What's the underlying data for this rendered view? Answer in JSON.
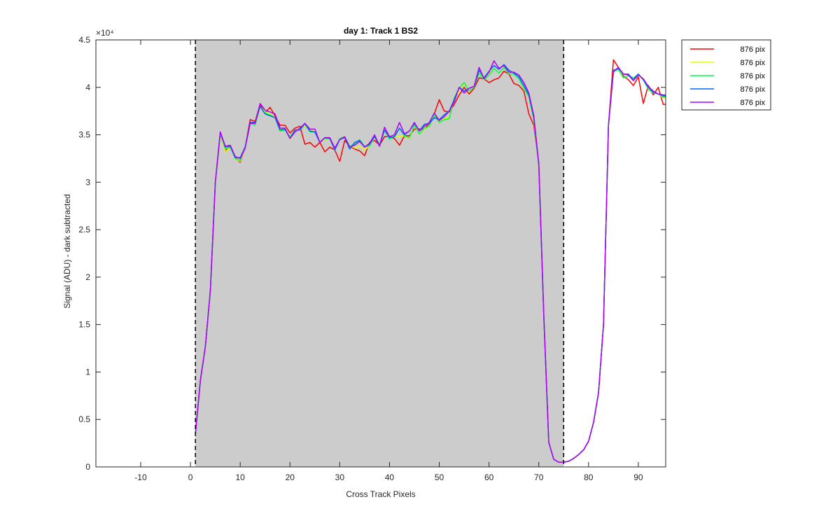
{
  "chart_data": {
    "type": "line",
    "title": "day 1: Track 1  BS2",
    "xlabel": "Cross Track Pixels",
    "ylabel": "Signal (ADU) - dark subtracted",
    "y_exponent_label": "×10⁴",
    "xlim": [
      -19,
      95.5
    ],
    "ylim": [
      0,
      4.5
    ],
    "xticks": [
      -10,
      0,
      10,
      20,
      30,
      40,
      50,
      60,
      70,
      80,
      90
    ],
    "yticks": [
      0,
      0.5,
      1,
      1.5,
      2,
      2.5,
      3,
      3.5,
      4,
      4.5
    ],
    "xtick_labels": [
      "-10",
      "0",
      "10",
      "20",
      "30",
      "40",
      "50",
      "60",
      "70",
      "80",
      "90"
    ],
    "ytick_labels": [
      "0",
      "0.5",
      "1",
      "1.5",
      "2",
      "2.5",
      "3",
      "3.5",
      "4",
      "4.5"
    ],
    "shaded_region": {
      "x0": 1,
      "x1": 75,
      "color": "#cccccc"
    },
    "vlines": [
      1,
      75
    ],
    "legend_position": "outside-top-right",
    "x": [
      1,
      2,
      3,
      4,
      5,
      6,
      7,
      8,
      9,
      10,
      11,
      12,
      13,
      14,
      15,
      16,
      17,
      18,
      19,
      20,
      21,
      22,
      23,
      24,
      25,
      26,
      27,
      28,
      29,
      30,
      31,
      32,
      33,
      34,
      35,
      36,
      37,
      38,
      39,
      40,
      41,
      42,
      43,
      44,
      45,
      46,
      47,
      48,
      49,
      50,
      51,
      52,
      53,
      54,
      55,
      56,
      57,
      58,
      59,
      60,
      61,
      62,
      63,
      64,
      65,
      66,
      67,
      68,
      69,
      70,
      71,
      72,
      73,
      74,
      75,
      76,
      77,
      78,
      79,
      80,
      81,
      82,
      83,
      84,
      85,
      86,
      87,
      88,
      89,
      90,
      91,
      92,
      93,
      94,
      95,
      96
    ],
    "series": [
      {
        "name": "876 pix",
        "color": "#ff0000",
        "values": [
          0.35,
          0.92,
          1.27,
          1.85,
          3.0,
          3.51,
          3.33,
          3.38,
          3.26,
          3.21,
          3.37,
          3.66,
          3.64,
          3.82,
          3.73,
          3.79,
          3.7,
          3.6,
          3.6,
          3.52,
          3.57,
          3.59,
          3.4,
          3.42,
          3.37,
          3.42,
          3.32,
          3.37,
          3.34,
          3.22,
          3.44,
          3.38,
          3.35,
          3.33,
          3.28,
          3.42,
          3.44,
          3.39,
          3.48,
          3.48,
          3.46,
          3.39,
          3.49,
          3.49,
          3.56,
          3.56,
          3.56,
          3.62,
          3.72,
          3.87,
          3.75,
          3.74,
          3.82,
          3.92,
          4.0,
          3.93,
          3.99,
          4.1,
          4.09,
          4.05,
          4.08,
          4.1,
          4.17,
          4.14,
          4.04,
          4.02,
          3.96,
          3.72,
          3.6,
          3.2,
          1.6,
          0.26,
          0.08,
          0.05,
          0.05,
          0.06,
          0.09,
          0.13,
          0.18,
          0.27,
          0.47,
          0.78,
          1.5,
          3.6,
          4.29,
          4.21,
          4.12,
          4.08,
          4.02,
          4.11,
          3.83,
          4.02,
          3.92,
          4.0,
          3.82,
          3.82
        ]
      },
      {
        "name": "876 pix",
        "color": "#e0ff00",
        "values": [
          0.35,
          0.91,
          1.27,
          1.85,
          3.0,
          3.52,
          3.32,
          3.37,
          3.25,
          3.22,
          3.37,
          3.62,
          3.61,
          3.8,
          3.74,
          3.72,
          3.67,
          3.56,
          3.57,
          3.45,
          3.55,
          3.55,
          3.6,
          3.54,
          3.54,
          3.42,
          3.45,
          3.45,
          3.34,
          3.45,
          3.47,
          3.39,
          3.36,
          3.38,
          3.34,
          3.38,
          3.47,
          3.39,
          3.54,
          3.46,
          3.49,
          3.48,
          3.49,
          3.46,
          3.6,
          3.51,
          3.56,
          3.59,
          3.72,
          3.64,
          3.67,
          3.68,
          3.89,
          3.95,
          4.05,
          3.95,
          4.01,
          4.18,
          4.08,
          4.14,
          4.2,
          4.15,
          4.21,
          4.14,
          4.14,
          4.09,
          3.99,
          3.9,
          3.65,
          3.18,
          1.6,
          0.26,
          0.08,
          0.05,
          0.05,
          0.06,
          0.09,
          0.13,
          0.18,
          0.27,
          0.47,
          0.78,
          1.5,
          3.6,
          4.16,
          4.21,
          4.1,
          4.12,
          4.08,
          4.13,
          4.08,
          3.98,
          3.95,
          3.93,
          3.89,
          3.89
        ]
      },
      {
        "name": "876 pix",
        "color": "#00ff40",
        "values": [
          0.35,
          0.91,
          1.27,
          1.86,
          3.0,
          3.52,
          3.35,
          3.37,
          3.25,
          3.23,
          3.38,
          3.62,
          3.6,
          3.8,
          3.73,
          3.71,
          3.68,
          3.54,
          3.55,
          3.48,
          3.55,
          3.55,
          3.61,
          3.53,
          3.53,
          3.42,
          3.46,
          3.46,
          3.35,
          3.46,
          3.48,
          3.38,
          3.4,
          3.45,
          3.38,
          3.38,
          3.48,
          3.4,
          3.55,
          3.45,
          3.49,
          3.57,
          3.49,
          3.47,
          3.6,
          3.51,
          3.57,
          3.59,
          3.71,
          3.63,
          3.66,
          3.67,
          3.89,
          3.99,
          4.05,
          3.96,
          4.0,
          4.15,
          4.08,
          4.13,
          4.2,
          4.15,
          4.21,
          4.14,
          4.14,
          4.09,
          3.99,
          3.9,
          3.66,
          3.18,
          1.6,
          0.26,
          0.08,
          0.05,
          0.05,
          0.06,
          0.09,
          0.13,
          0.18,
          0.27,
          0.47,
          0.78,
          1.5,
          3.6,
          4.16,
          4.19,
          4.1,
          4.12,
          4.1,
          4.14,
          4.08,
          3.98,
          3.94,
          3.93,
          3.9,
          3.9
        ]
      },
      {
        "name": "876 pix",
        "color": "#0066ff",
        "values": [
          0.35,
          0.91,
          1.27,
          1.86,
          3.0,
          3.53,
          3.37,
          3.38,
          3.26,
          3.26,
          3.37,
          3.63,
          3.63,
          3.8,
          3.72,
          3.7,
          3.68,
          3.55,
          3.56,
          3.46,
          3.55,
          3.55,
          3.62,
          3.54,
          3.53,
          3.42,
          3.47,
          3.46,
          3.34,
          3.45,
          3.47,
          3.35,
          3.42,
          3.44,
          3.37,
          3.4,
          3.48,
          3.38,
          3.55,
          3.47,
          3.48,
          3.57,
          3.5,
          3.54,
          3.62,
          3.54,
          3.61,
          3.62,
          3.68,
          3.66,
          3.71,
          3.75,
          3.87,
          4.0,
          3.96,
          3.99,
          4.01,
          4.18,
          4.1,
          4.17,
          4.23,
          4.19,
          4.24,
          4.18,
          4.15,
          4.11,
          4.02,
          3.92,
          3.68,
          3.18,
          1.6,
          0.26,
          0.08,
          0.05,
          0.05,
          0.06,
          0.09,
          0.13,
          0.18,
          0.27,
          0.47,
          0.78,
          1.5,
          3.6,
          4.18,
          4.2,
          4.14,
          4.14,
          4.08,
          4.14,
          4.08,
          4.0,
          3.95,
          3.93,
          3.91,
          3.91
        ]
      },
      {
        "name": "876 pix",
        "color": "#b000ff",
        "values": [
          0.35,
          0.91,
          1.27,
          1.86,
          3.0,
          3.53,
          3.38,
          3.39,
          3.27,
          3.25,
          3.36,
          3.62,
          3.62,
          3.83,
          3.76,
          3.74,
          3.72,
          3.57,
          3.57,
          3.46,
          3.53,
          3.57,
          3.62,
          3.56,
          3.56,
          3.42,
          3.47,
          3.47,
          3.36,
          3.45,
          3.48,
          3.37,
          3.39,
          3.43,
          3.37,
          3.41,
          3.5,
          3.38,
          3.58,
          3.48,
          3.5,
          3.63,
          3.51,
          3.54,
          3.63,
          3.54,
          3.59,
          3.63,
          3.73,
          3.65,
          3.69,
          3.75,
          3.85,
          4.0,
          3.94,
          3.99,
          4.01,
          4.21,
          4.09,
          4.16,
          4.28,
          4.2,
          4.23,
          4.16,
          4.16,
          4.13,
          4.05,
          3.94,
          3.7,
          3.19,
          1.6,
          0.26,
          0.08,
          0.05,
          0.05,
          0.06,
          0.09,
          0.13,
          0.18,
          0.27,
          0.47,
          0.78,
          1.5,
          3.6,
          4.17,
          4.21,
          4.14,
          4.13,
          4.07,
          4.13,
          4.09,
          4.01,
          3.96,
          3.93,
          3.92,
          3.92
        ]
      }
    ]
  }
}
